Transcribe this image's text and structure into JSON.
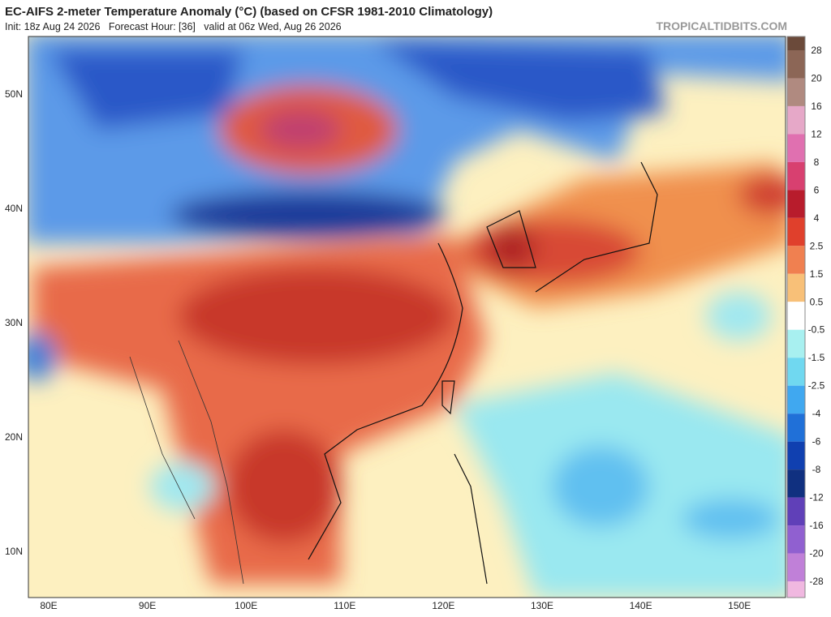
{
  "header": {
    "title": "EC-AIFS 2-meter Temperature Anomaly (°C) (based on CFSR 1981-2010 Climatology)",
    "subtitle": "Init: 18z Aug 24 2026   Forecast Hour: [36]   valid at 06z Wed, Aug 26 2026",
    "watermark": "TROPICALTIDBITS.COM"
  },
  "map": {
    "lat_labels": [
      "50N",
      "40N",
      "30N",
      "20N",
      "10N"
    ],
    "lon_labels": [
      "80E",
      "90E",
      "100E",
      "110E",
      "120E",
      "130E",
      "140E",
      "150E"
    ]
  },
  "colorbar": {
    "labels": [
      "28",
      "20",
      "16",
      "12",
      "8",
      "6",
      "4",
      "2.5",
      "1.5",
      "0.5",
      "-0.5",
      "-1.5",
      "-2.5",
      "-4",
      "-6",
      "-8",
      "-12",
      "-16",
      "-20",
      "-28"
    ],
    "colors": [
      "#6b4a3a",
      "#8c6656",
      "#b08a80",
      "#e6a8c8",
      "#e070b0",
      "#d84070",
      "#b81c2c",
      "#e0402c",
      "#f08050",
      "#f8c078",
      "#ffffff",
      "#a8f0f0",
      "#70d8f0",
      "#40a8f0",
      "#2070d8",
      "#1040b0",
      "#103080",
      "#6040b8",
      "#9060d0",
      "#c080d8",
      "#f0b8e0"
    ]
  }
}
